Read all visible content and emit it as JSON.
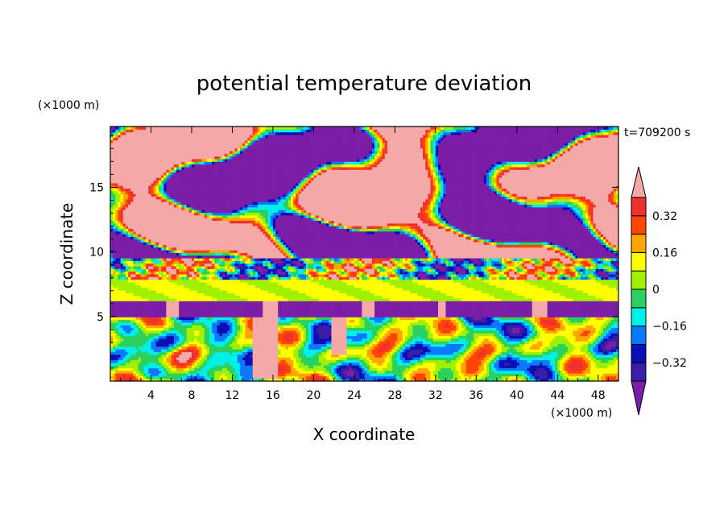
{
  "chart_data": {
    "type": "heatmap",
    "title": "potential temperature deviation",
    "xlabel": "X coordinate",
    "ylabel": "Z coordinate",
    "x_unit": "(×1000 m)",
    "y_unit": "(×1000 m)",
    "time_label": "t=709200 s",
    "xlim": [
      0,
      50
    ],
    "ylim": [
      0,
      19.7
    ],
    "x_ticks": [
      4,
      8,
      12,
      16,
      20,
      24,
      28,
      32,
      36,
      40,
      44,
      48
    ],
    "x_tick_labels": [
      "4",
      "8",
      "12",
      "16",
      "20",
      "24",
      "28",
      "32",
      "36",
      "40",
      "44",
      "48"
    ],
    "y_ticks": [
      5,
      10,
      15
    ],
    "y_tick_labels": [
      "5",
      "10",
      "15"
    ],
    "colorbar": {
      "levels": [
        -0.4,
        -0.32,
        -0.24,
        -0.16,
        -0.08,
        0,
        0.08,
        0.16,
        0.24,
        0.32,
        0.4
      ],
      "tick_values": [
        -0.32,
        -0.16,
        0,
        0.16,
        0.32
      ],
      "tick_labels": [
        "−0.32",
        "−0.16",
        "0",
        "0.16",
        "0.32"
      ],
      "colors": [
        "#7a1ea8",
        "#3b1ea8",
        "#0a10b4",
        "#0a78ff",
        "#00f0e8",
        "#2ad060",
        "#a0f000",
        "#ffff00",
        "#ffa500",
        "#ff4500",
        "#f03030",
        "#f5a8a8"
      ],
      "extend": "both"
    },
    "field_description_values": {
      "z_bands": [
        {
          "z_range": [
            0,
            5
          ],
          "pattern": "mixed anomalies -0.32 to 0.32"
        },
        {
          "z_range": [
            5,
            6.2
          ],
          "value": -0.4
        },
        {
          "z_range": [
            6.2,
            7.8
          ],
          "value": 0.1
        },
        {
          "z_range": [
            7.8,
            19.7
          ],
          "pattern": "large patches of -0.4 and 0.4 with thin fronts"
        }
      ]
    }
  }
}
